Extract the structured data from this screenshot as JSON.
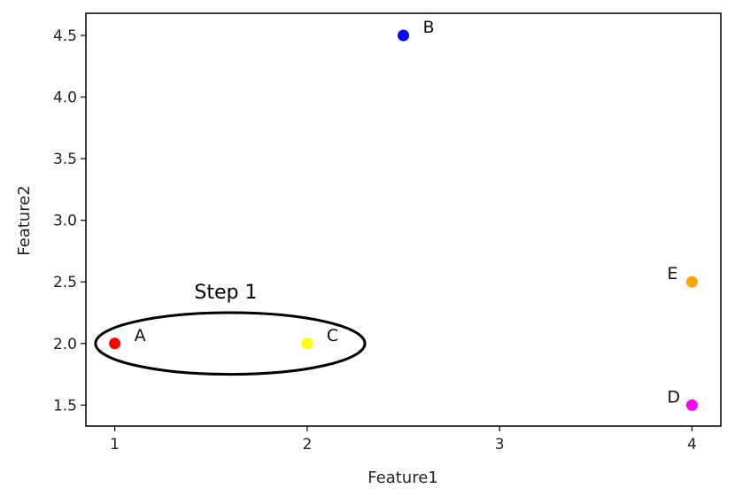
{
  "chart_data": {
    "type": "scatter",
    "title": "",
    "xlabel": "Feature1",
    "ylabel": "Feature2",
    "xlim": [
      0.85,
      4.15
    ],
    "ylim": [
      1.33,
      4.68
    ],
    "xticks": [
      1,
      2,
      3,
      4
    ],
    "yticks": [
      1.5,
      2.0,
      2.5,
      3.0,
      3.5,
      4.0,
      4.5
    ],
    "xtick_labels": [
      "1",
      "2",
      "3",
      "4"
    ],
    "ytick_labels": [
      "1.5",
      "2.0",
      "2.5",
      "3.0",
      "3.5",
      "4.0",
      "4.5"
    ],
    "grid": false,
    "points": [
      {
        "label": "A",
        "x": 1.0,
        "y": 2.0,
        "color": "#ff0000",
        "label_side": "right"
      },
      {
        "label": "B",
        "x": 2.5,
        "y": 4.5,
        "color": "#0000ff",
        "label_side": "right"
      },
      {
        "label": "C",
        "x": 2.0,
        "y": 2.0,
        "color": "#ffff00",
        "label_side": "right"
      },
      {
        "label": "D",
        "x": 4.0,
        "y": 1.5,
        "color": "#ff00ff",
        "label_side": "left"
      },
      {
        "label": "E",
        "x": 4.0,
        "y": 2.5,
        "color": "#ffa500",
        "label_side": "left"
      }
    ],
    "annotations": [
      {
        "type": "ellipse",
        "text": "Step 1",
        "x_range": [
          0.9,
          2.3
        ],
        "y_range": [
          1.75,
          2.25
        ]
      }
    ]
  }
}
